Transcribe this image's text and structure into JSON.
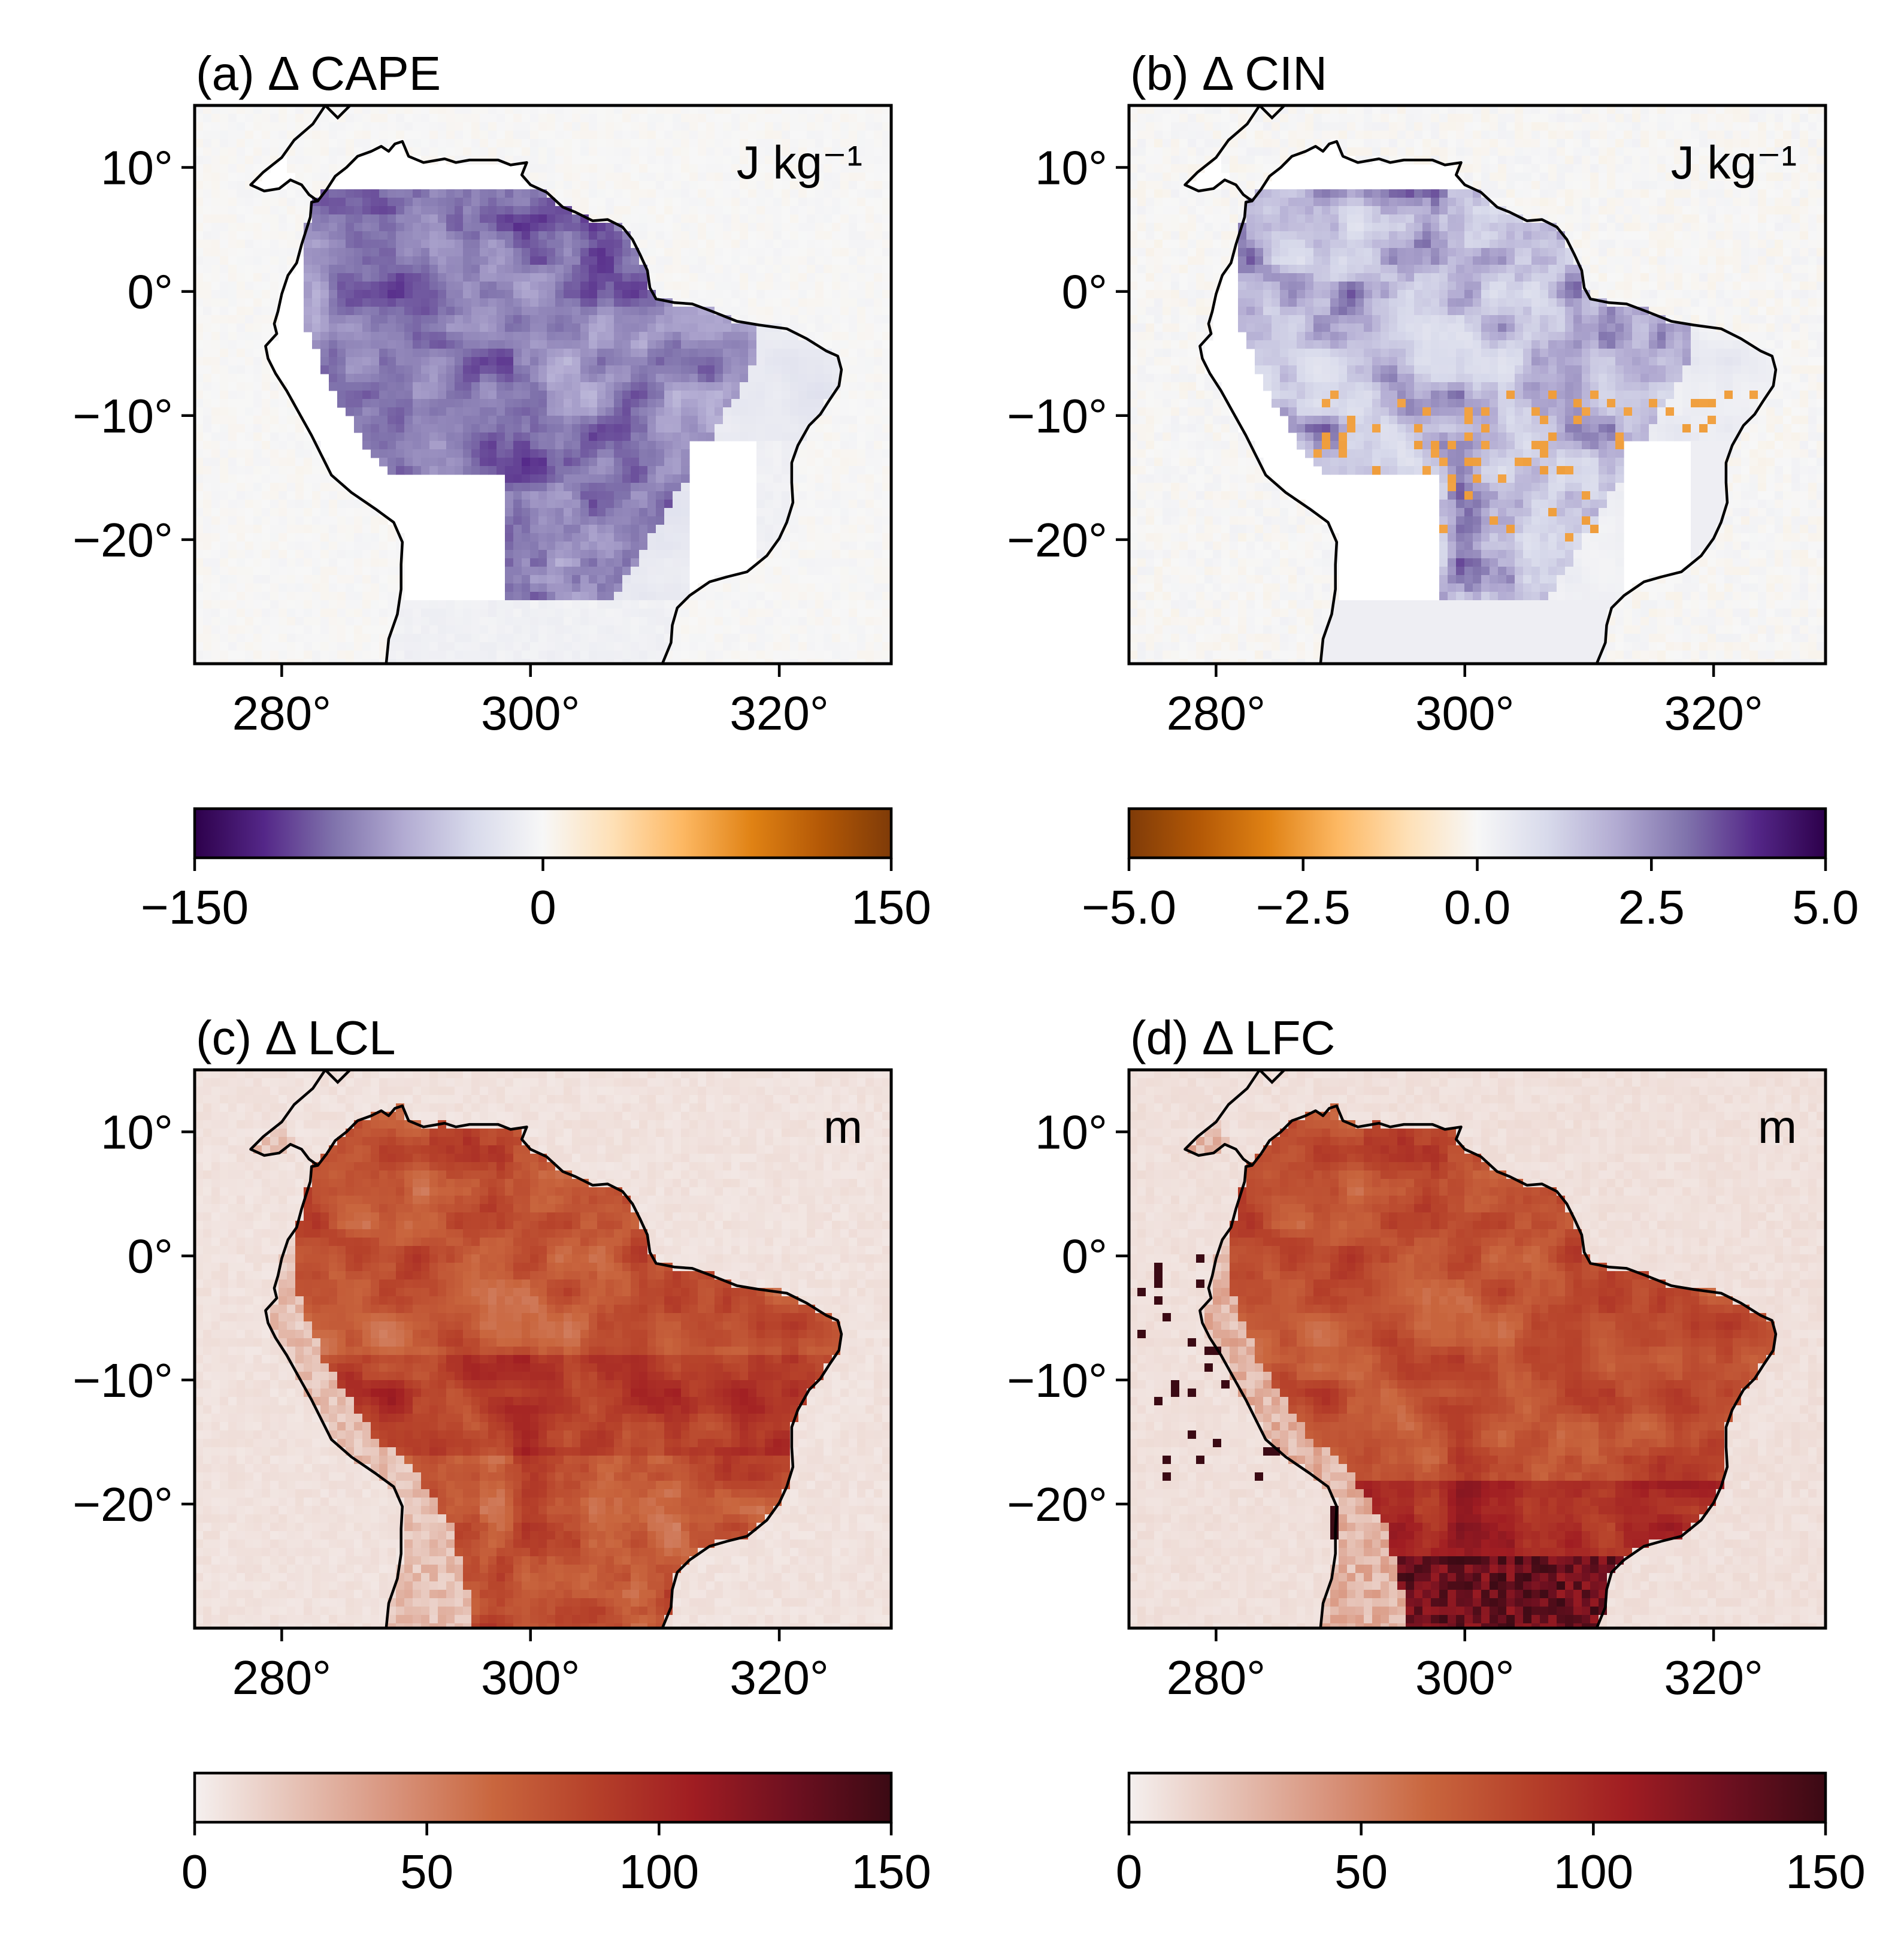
{
  "figure": {
    "panels": [
      {
        "id": "a",
        "title": "(a) Δ CAPE",
        "unit": "J kg⁻¹",
        "field": "cape",
        "lat_ticks": [
          "10°",
          "0°",
          "−10°",
          "−20°"
        ],
        "lon_ticks": [
          "280°",
          "300°",
          "320°"
        ],
        "colorbar": {
          "colormap": "PuOr_r",
          "stops": [
            "#2d004b",
            "#542788",
            "#8073ac",
            "#b2abd2",
            "#d8daeb",
            "#f7f7f7",
            "#fee0b6",
            "#fdb863",
            "#e08214",
            "#b35806",
            "#7f3b08"
          ],
          "range": [
            -150,
            150
          ],
          "tick_labels": [
            "−150",
            "0",
            "150"
          ]
        }
      },
      {
        "id": "b",
        "title": "(b) Δ CIN",
        "unit": "J kg⁻¹",
        "field": "cin",
        "lat_ticks": [
          "10°",
          "0°",
          "−10°",
          "−20°"
        ],
        "lon_ticks": [
          "280°",
          "300°",
          "320°"
        ],
        "colorbar": {
          "colormap": "PuOr",
          "stops": [
            "#7f3b08",
            "#b35806",
            "#e08214",
            "#fdb863",
            "#fee0b6",
            "#f7f7f7",
            "#d8daeb",
            "#b2abd2",
            "#8073ac",
            "#542788",
            "#2d004b"
          ],
          "range": [
            -5.0,
            5.0
          ],
          "tick_labels": [
            "−5.0",
            "−2.5",
            "0.0",
            "2.5",
            "5.0"
          ]
        }
      },
      {
        "id": "c",
        "title": "(c) Δ LCL",
        "unit": "m",
        "field": "lcl",
        "lat_ticks": [
          "10°",
          "0°",
          "−10°",
          "−20°"
        ],
        "lon_ticks": [
          "280°",
          "300°",
          "320°"
        ],
        "colorbar": {
          "colormap": "Reds-brown",
          "stops": [
            "#f5f0ef",
            "#e6c2b6",
            "#d8937c",
            "#c9663e",
            "#b6412a",
            "#a01d22",
            "#6e1020",
            "#3b0a14"
          ],
          "range": [
            0,
            150
          ],
          "tick_labels": [
            "0",
            "50",
            "100",
            "150"
          ]
        }
      },
      {
        "id": "d",
        "title": "(d) Δ LFC",
        "unit": "m",
        "field": "lfc",
        "lat_ticks": [
          "10°",
          "0°",
          "−10°",
          "−20°"
        ],
        "lon_ticks": [
          "280°",
          "300°",
          "320°"
        ],
        "colorbar": {
          "colormap": "Reds-brown",
          "stops": [
            "#f5f0ef",
            "#e6c2b6",
            "#d8937c",
            "#c9663e",
            "#b6412a",
            "#a01d22",
            "#6e1020",
            "#3b0a14"
          ],
          "range": [
            0,
            150
          ],
          "tick_labels": [
            "0",
            "50",
            "100",
            "150"
          ]
        }
      }
    ],
    "map_extent": {
      "lon": [
        273,
        329
      ],
      "lat": [
        -30,
        15
      ]
    },
    "lat_values": [
      10,
      0,
      -10,
      -20
    ],
    "lon_values": [
      280,
      300,
      320
    ]
  }
}
